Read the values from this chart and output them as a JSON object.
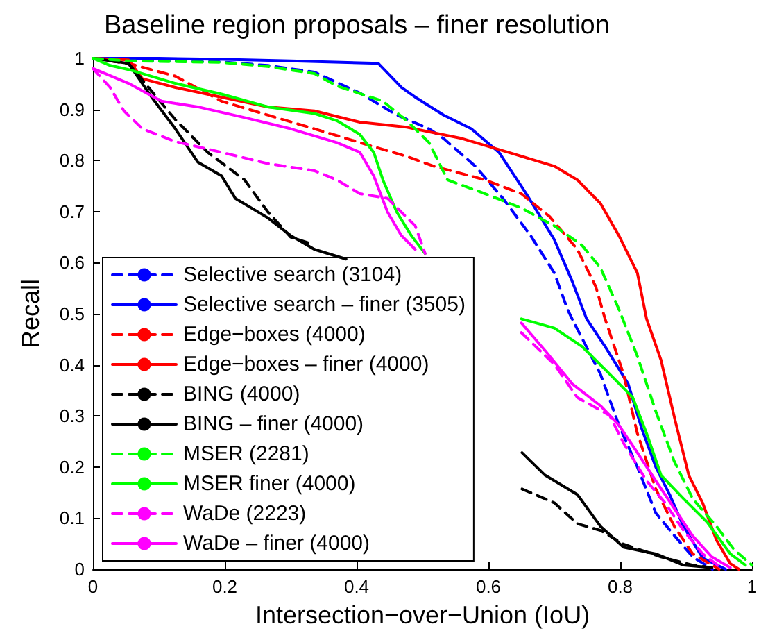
{
  "chart_data": {
    "type": "line",
    "title": "Baseline region proposals – finer resolution",
    "xlabel": "Intersection−over−Union (IoU)",
    "ylabel": "Recall",
    "xlim": [
      0,
      1
    ],
    "xticks": [
      0,
      0.2,
      0.4,
      0.6,
      0.8,
      1
    ],
    "ylim": [
      0,
      1
    ],
    "yticks": [
      0,
      0.1,
      0.2,
      0.3,
      0.4,
      0.5,
      0.6,
      0.7,
      0.8,
      0.9,
      1
    ],
    "grid": false,
    "legend": "bottom left",
    "marker": "none",
    "series": [
      {
        "name": "Selective search (3104)",
        "color": "#0000ff",
        "line_style": "dashed",
        "x": [
          0,
          0.1,
          0.195,
          0.265,
          0.336,
          0.405,
          0.461,
          0.51,
          0.532,
          0.58,
          0.622,
          0.664,
          0.7,
          0.72,
          0.727,
          0.77,
          0.798,
          0.826,
          0.854,
          0.882,
          0.91,
          0.94
        ],
        "values": [
          1,
          0.995,
          0.993,
          0.986,
          0.973,
          0.932,
          0.889,
          0.862,
          0.843,
          0.789,
          0.726,
          0.653,
          0.58,
          0.509,
          0.49,
          0.382,
          0.282,
          0.2,
          0.11,
          0.066,
          0.024,
          0
        ]
      },
      {
        "name": "Selective search – finer (3505)",
        "color": "#0000ff",
        "line_style": "solid",
        "x": [
          0,
          0.1,
          0.2,
          0.3,
          0.433,
          0.468,
          0.489,
          0.532,
          0.574,
          0.616,
          0.658,
          0.7,
          0.727,
          0.749,
          0.777,
          0.812,
          0.833,
          0.854,
          0.875,
          0.896,
          0.925,
          0.96
        ],
        "values": [
          1,
          1,
          0.998,
          0.995,
          0.99,
          0.943,
          0.924,
          0.889,
          0.862,
          0.816,
          0.734,
          0.645,
          0.564,
          0.49,
          0.436,
          0.363,
          0.274,
          0.2,
          0.146,
          0.084,
          0.022,
          0
        ]
      },
      {
        "name": "Edge−boxes (4000)",
        "color": "#ff0000",
        "line_style": "dashed",
        "x": [
          0,
          0.054,
          0.125,
          0.195,
          0.265,
          0.336,
          0.405,
          0.476,
          0.517,
          0.595,
          0.65,
          0.693,
          0.735,
          0.763,
          0.777,
          0.805,
          0.826,
          0.854,
          0.882,
          0.91,
          0.95
        ],
        "values": [
          1,
          0.99,
          0.965,
          0.916,
          0.889,
          0.862,
          0.835,
          0.808,
          0.789,
          0.762,
          0.735,
          0.69,
          0.626,
          0.553,
          0.49,
          0.382,
          0.266,
          0.157,
          0.084,
          0.03,
          0
        ]
      },
      {
        "name": "Edge−boxes – finer (4000)",
        "color": "#ff0000",
        "line_style": "solid",
        "x": [
          0,
          0.054,
          0.075,
          0.125,
          0.195,
          0.265,
          0.336,
          0.405,
          0.476,
          0.56,
          0.63,
          0.7,
          0.735,
          0.77,
          0.798,
          0.826,
          0.84,
          0.862,
          0.883,
          0.904,
          0.925,
          0.946,
          0.967,
          0.98
        ],
        "values": [
          1,
          0.997,
          0.96,
          0.943,
          0.924,
          0.905,
          0.897,
          0.875,
          0.865,
          0.843,
          0.816,
          0.789,
          0.762,
          0.716,
          0.653,
          0.58,
          0.49,
          0.409,
          0.293,
          0.184,
          0.13,
          0.057,
          0.011,
          0
        ]
      },
      {
        "name": "BING (4000)",
        "color": "#000000",
        "line_style": "dashed",
        "x": [
          0,
          0.054,
          0.125,
          0.174,
          0.23,
          0.265,
          0.3,
          0.336,
          0.5,
          0.651,
          0.7,
          0.735,
          0.77,
          0.805,
          0.862,
          0.91,
          0.939
        ],
        "values": [
          1,
          0.99,
          0.88,
          0.816,
          0.762,
          0.7,
          0.65,
          0.635,
          null,
          0.157,
          0.13,
          0.089,
          0.076,
          0.049,
          0.024,
          0.008,
          0.003
        ]
      },
      {
        "name": "BING – finer (4000)",
        "color": "#000000",
        "line_style": "solid",
        "x": [
          0,
          0.054,
          0.089,
          0.125,
          0.159,
          0.195,
          0.216,
          0.265,
          0.3,
          0.336,
          0.384,
          0.5,
          0.651,
          0.686,
          0.735,
          0.77,
          0.805,
          0.854,
          0.896,
          0.939
        ],
        "values": [
          1,
          0.99,
          0.924,
          0.862,
          0.797,
          0.77,
          0.726,
          0.688,
          0.653,
          0.626,
          0.607,
          null,
          0.228,
          0.184,
          0.146,
          0.084,
          0.043,
          0.03,
          0.008,
          0.003
        ]
      },
      {
        "name": "MSER (2281)",
        "color": "#00ff00",
        "line_style": "dashed",
        "x": [
          0,
          0.054,
          0.195,
          0.265,
          0.336,
          0.37,
          0.44,
          0.476,
          0.51,
          0.538,
          0.595,
          0.65,
          0.7,
          0.742,
          0.77,
          0.798,
          0.826,
          0.854,
          0.882,
          0.91,
          0.946,
          0.973,
          1
        ],
        "values": [
          1,
          0.995,
          0.992,
          0.984,
          0.97,
          0.946,
          0.916,
          0.878,
          0.835,
          0.762,
          0.735,
          0.707,
          0.672,
          0.634,
          0.59,
          0.509,
          0.417,
          0.309,
          0.211,
          0.138,
          0.084,
          0.038,
          0.008
        ]
      },
      {
        "name": "MSER finer (4000)",
        "color": "#00ff00",
        "line_style": "solid",
        "x": [
          0,
          0.026,
          0.054,
          0.125,
          0.195,
          0.265,
          0.336,
          0.37,
          0.405,
          0.426,
          0.44,
          0.461,
          0.483,
          0.504,
          0.58,
          0.65,
          0.7,
          0.742,
          0.784,
          0.819,
          0.84,
          0.862,
          0.896,
          0.932,
          0.967,
          0.99
        ],
        "values": [
          1,
          0.986,
          0.978,
          0.951,
          0.93,
          0.905,
          0.892,
          0.878,
          0.851,
          0.816,
          0.762,
          0.699,
          0.653,
          0.618,
          null,
          0.49,
          0.472,
          0.436,
          0.382,
          0.336,
          0.266,
          0.184,
          0.138,
          0.092,
          0.03,
          0.008
        ]
      },
      {
        "name": "WaDe (2223)",
        "color": "#ff00ff",
        "line_style": "dashed",
        "x": [
          0,
          0.026,
          0.047,
          0.075,
          0.125,
          0.195,
          0.265,
          0.336,
          0.37,
          0.405,
          0.447,
          0.489,
          0.504,
          0.58,
          0.65,
          0.7,
          0.735,
          0.784,
          0.805,
          0.84,
          0.868,
          0.896,
          0.925,
          0.953
        ],
        "values": [
          0.98,
          0.943,
          0.897,
          0.862,
          0.837,
          0.816,
          0.794,
          0.78,
          0.762,
          0.735,
          0.726,
          0.672,
          0.618,
          null,
          0.463,
          0.401,
          0.336,
          0.301,
          0.247,
          0.173,
          0.13,
          0.076,
          0.03,
          0.003
        ]
      },
      {
        "name": "WaDe – finer (4000)",
        "color": "#ff00ff",
        "line_style": "solid",
        "x": [
          0,
          0.054,
          0.104,
          0.159,
          0.23,
          0.3,
          0.37,
          0.405,
          0.426,
          0.447,
          0.468,
          0.489,
          0.57,
          0.65,
          0.686,
          0.727,
          0.77,
          0.798,
          0.826,
          0.854,
          0.882,
          0.91,
          0.939,
          0.967
        ],
        "values": [
          0.98,
          0.951,
          0.916,
          0.905,
          0.884,
          0.862,
          0.835,
          0.816,
          0.77,
          0.699,
          0.653,
          0.626,
          null,
          0.482,
          0.428,
          0.363,
          0.32,
          0.282,
          0.228,
          0.173,
          0.119,
          0.065,
          0.024,
          0.003
        ]
      }
    ]
  }
}
